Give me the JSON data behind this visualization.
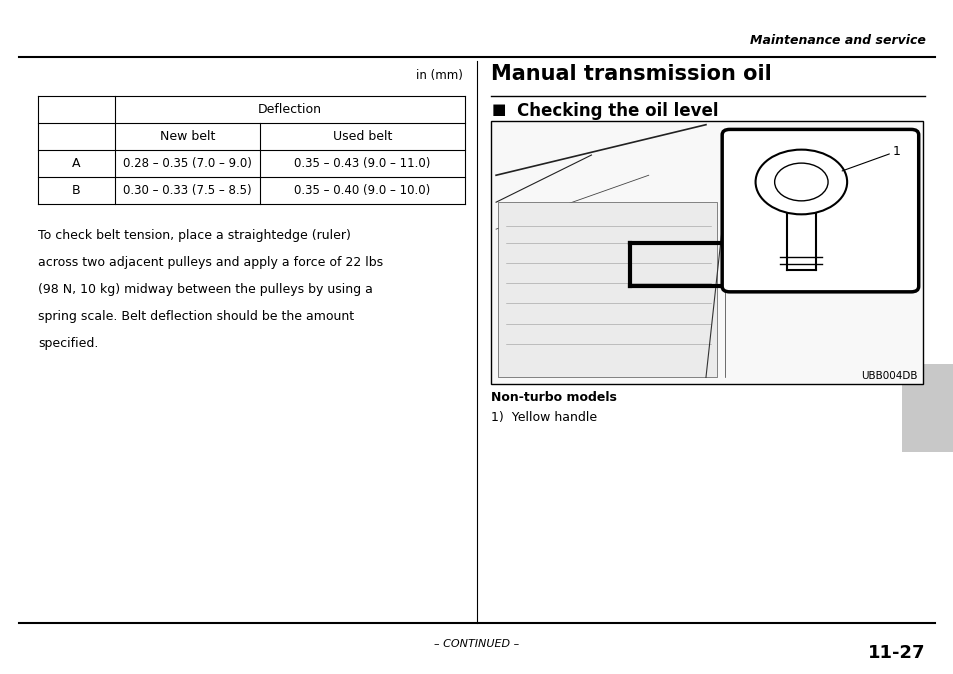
{
  "page_bg": "#ffffff",
  "header_text": "Maintenance and service",
  "footer_continued": "– CONTINUED –",
  "footer_page": "11-27",
  "table_unit": "in (mm)",
  "table_header1": "Deflection",
  "table_subheader_left": "New belt",
  "table_subheader_right": "Used belt",
  "table_row_A_label": "A",
  "table_row_A_new": "0.28 – 0.35 (7.0 – 9.0)",
  "table_row_A_used": "0.35 – 0.43 (9.0 – 11.0)",
  "table_row_B_label": "B",
  "table_row_B_new": "0.30 – 0.33 (7.5 – 8.5)",
  "table_row_B_used": "0.35 – 0.40 (9.0 – 10.0)",
  "para_lines": [
    "To check belt tension, place a straightedge (ruler)",
    "across two adjacent pulleys and apply a force of 22 lbs",
    "(98 N, 10 kg) midway between the pulleys by using a",
    "spring scale. Belt deflection should be the amount",
    "specified."
  ],
  "right_title": "Manual transmission oil",
  "right_subtitle": "Checking the oil level",
  "image_caption_bold": "Non-turbo models",
  "image_caption": "1)  Yellow handle",
  "image_code": "UBB004DB",
  "tab_color": "#c8c8c8"
}
